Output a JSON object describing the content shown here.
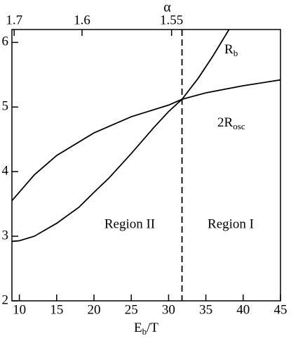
{
  "chart_data": {
    "type": "line",
    "xlabel": {
      "main": "E",
      "sub": "b",
      "rest": "/T"
    },
    "x2label": "α",
    "xlim": [
      9,
      45
    ],
    "ylim": [
      2,
      6.2
    ],
    "xticks": [
      10,
      15,
      20,
      25,
      30,
      35,
      40,
      45
    ],
    "yticks": [
      2,
      3,
      4,
      5,
      6
    ],
    "x2ticks": [
      {
        "value": 9.3,
        "label": "1.7"
      },
      {
        "value": 18.4,
        "label": "1.6"
      },
      {
        "value": 30.4,
        "label": "1.55"
      }
    ],
    "vline": 31.8,
    "series": [
      {
        "name": {
          "main": "R",
          "sub": "b"
        },
        "color": "#000000",
        "x": [
          9,
          10,
          12,
          15,
          18,
          20,
          22,
          25,
          28,
          30,
          31.8,
          34,
          36,
          38.1
        ],
        "values": [
          2.92,
          2.93,
          3.0,
          3.2,
          3.45,
          3.68,
          3.9,
          4.28,
          4.68,
          4.93,
          5.12,
          5.45,
          5.8,
          6.2
        ]
      },
      {
        "name": {
          "main": "2R",
          "sub": "osc"
        },
        "color": "#000000",
        "x": [
          9,
          12,
          15,
          20,
          25,
          30,
          31.8,
          35,
          40,
          45
        ],
        "values": [
          3.55,
          3.95,
          4.25,
          4.6,
          4.85,
          5.03,
          5.12,
          5.22,
          5.33,
          5.42
        ]
      }
    ],
    "annotations": [
      "Region II",
      "Region I"
    ]
  }
}
